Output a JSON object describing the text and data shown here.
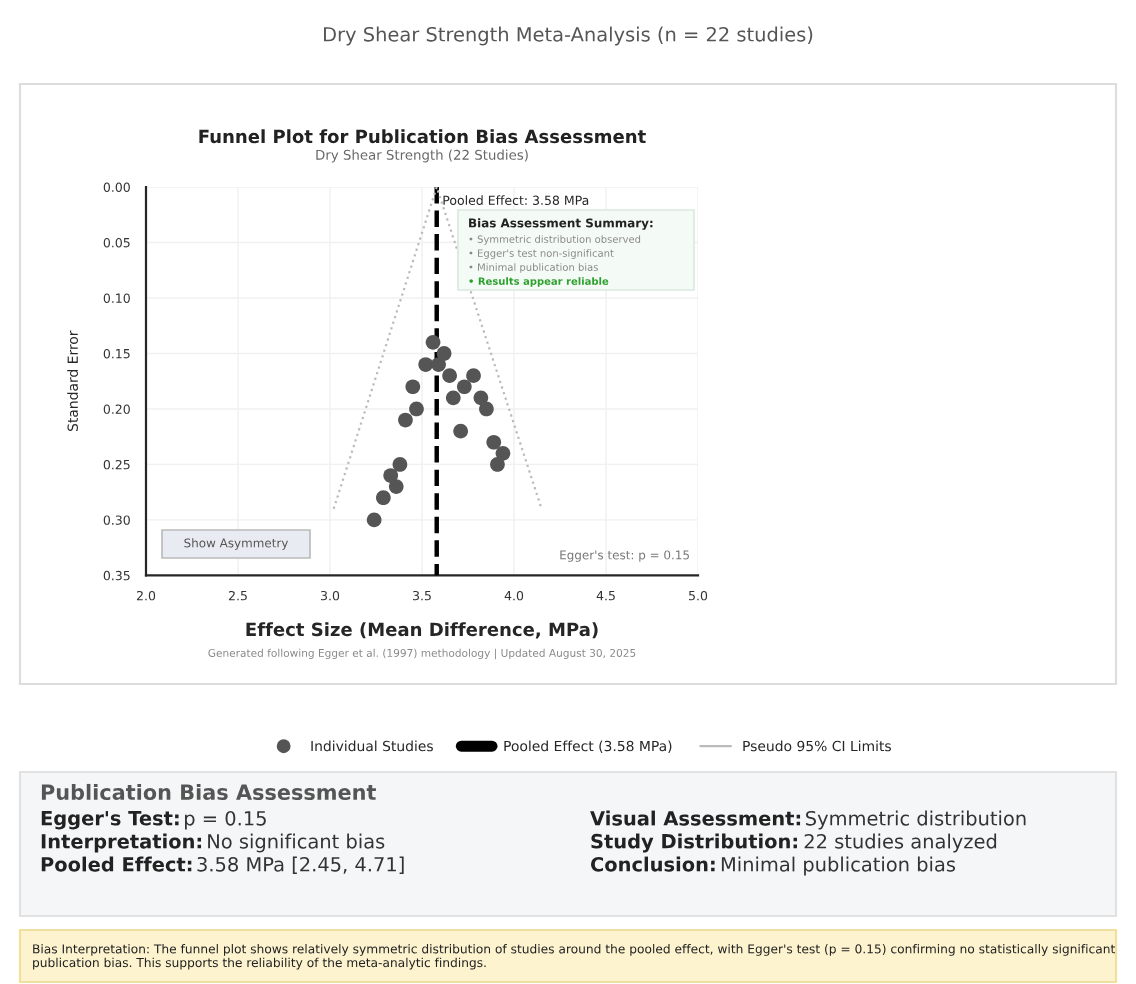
{
  "chart_data": {
    "type": "scatter",
    "title": "Funnel Plot for Publication Bias Assessment",
    "subtitle": "Dry Shear Strength (22 Studies)",
    "xlabel": "Effect Size (Mean Difference, MPa)",
    "ylabel": "Standard Error",
    "xlim": [
      2.0,
      5.0
    ],
    "xticks": [
      {
        "value": 2.0,
        "label": "2.0"
      },
      {
        "value": 2.5,
        "label": "2.5"
      },
      {
        "value": 3.0,
        "label": "3.0"
      },
      {
        "value": 3.5,
        "label": "3.5"
      },
      {
        "value": 4.0,
        "label": "4.0"
      },
      {
        "value": 4.5,
        "label": "4.5"
      },
      {
        "value": 5.0,
        "label": "5.0"
      }
    ],
    "ylim": [
      0.35,
      0.0
    ],
    "yticks": [
      {
        "value": 0.0,
        "label": "0.00"
      },
      {
        "value": 0.05,
        "label": "0.05"
      },
      {
        "value": 0.1,
        "label": "0.10"
      },
      {
        "value": 0.15,
        "label": "0.15"
      },
      {
        "value": 0.2,
        "label": "0.20"
      },
      {
        "value": 0.25,
        "label": "0.25"
      },
      {
        "value": 0.3,
        "label": "0.30"
      },
      {
        "value": 0.35,
        "label": "0.35"
      }
    ],
    "grid": true,
    "legend": "bottom",
    "series": [
      {
        "name": "Individual Studies",
        "type": "scatter",
        "marker": "circle",
        "color": "#555555",
        "x": [
          3.56,
          3.62,
          3.52,
          3.59,
          3.45,
          3.65,
          3.78,
          3.73,
          3.67,
          3.82,
          3.85,
          3.47,
          3.41,
          3.71,
          3.89,
          3.94,
          3.91,
          3.38,
          3.33,
          3.36,
          3.29,
          3.24
        ],
        "values": [
          0.14,
          0.15,
          0.16,
          0.16,
          0.18,
          0.17,
          0.17,
          0.18,
          0.19,
          0.19,
          0.2,
          0.2,
          0.21,
          0.22,
          0.23,
          0.24,
          0.25,
          0.25,
          0.26,
          0.27,
          0.28,
          0.3
        ]
      },
      {
        "name": "Pooled Effect (3.58 MPa)",
        "type": "line",
        "color": "#000000",
        "line_style": "dashed",
        "marker": "none",
        "x": [
          3.58,
          3.58
        ],
        "values": [
          0.0,
          0.35
        ]
      },
      {
        "name": "Pseudo 95% CI Limits",
        "type": "line",
        "color": "#bbbbbb",
        "line_style": "dotted",
        "marker": "none",
        "x": [
          3.02,
          3.58,
          4.15
        ],
        "values": [
          0.29,
          0.0,
          0.29
        ]
      }
    ],
    "annotations": [
      "Dry Shear Strength Meta-Analysis (n = 22 studies)",
      {
        "text": "Pooled Effect: 3.58 MPa",
        "x": 3.58,
        "y": 0.0
      },
      "Bias Assessment Summary:",
      "• Symmetric distribution observed",
      "• Egger's test non-significant",
      "• Minimal publication bias",
      "• Results appear reliable",
      "Show Asymmetry",
      "Egger's test: p = 0.15",
      "Generated following Egger et al. (1997) methodology | Updated August 30, 2025",
      "Publication Bias Assessment",
      "Egger's Test: p = 0.15",
      "Interpretation: No significant bias",
      "Pooled Effect: 3.58 MPa [2.45, 4.71]",
      "Visual Assessment: Symmetric distribution",
      "Study Distribution: 22 studies analyzed",
      "Conclusion: Minimal publication bias",
      "Bias Interpretation: The funnel plot shows relatively symmetric distribution of studies around the pooled effect, with Egger's test (p = 0.15) confirming no statistically significant publication bias. This supports the reliability of the meta-analytic findings."
    ]
  }
}
